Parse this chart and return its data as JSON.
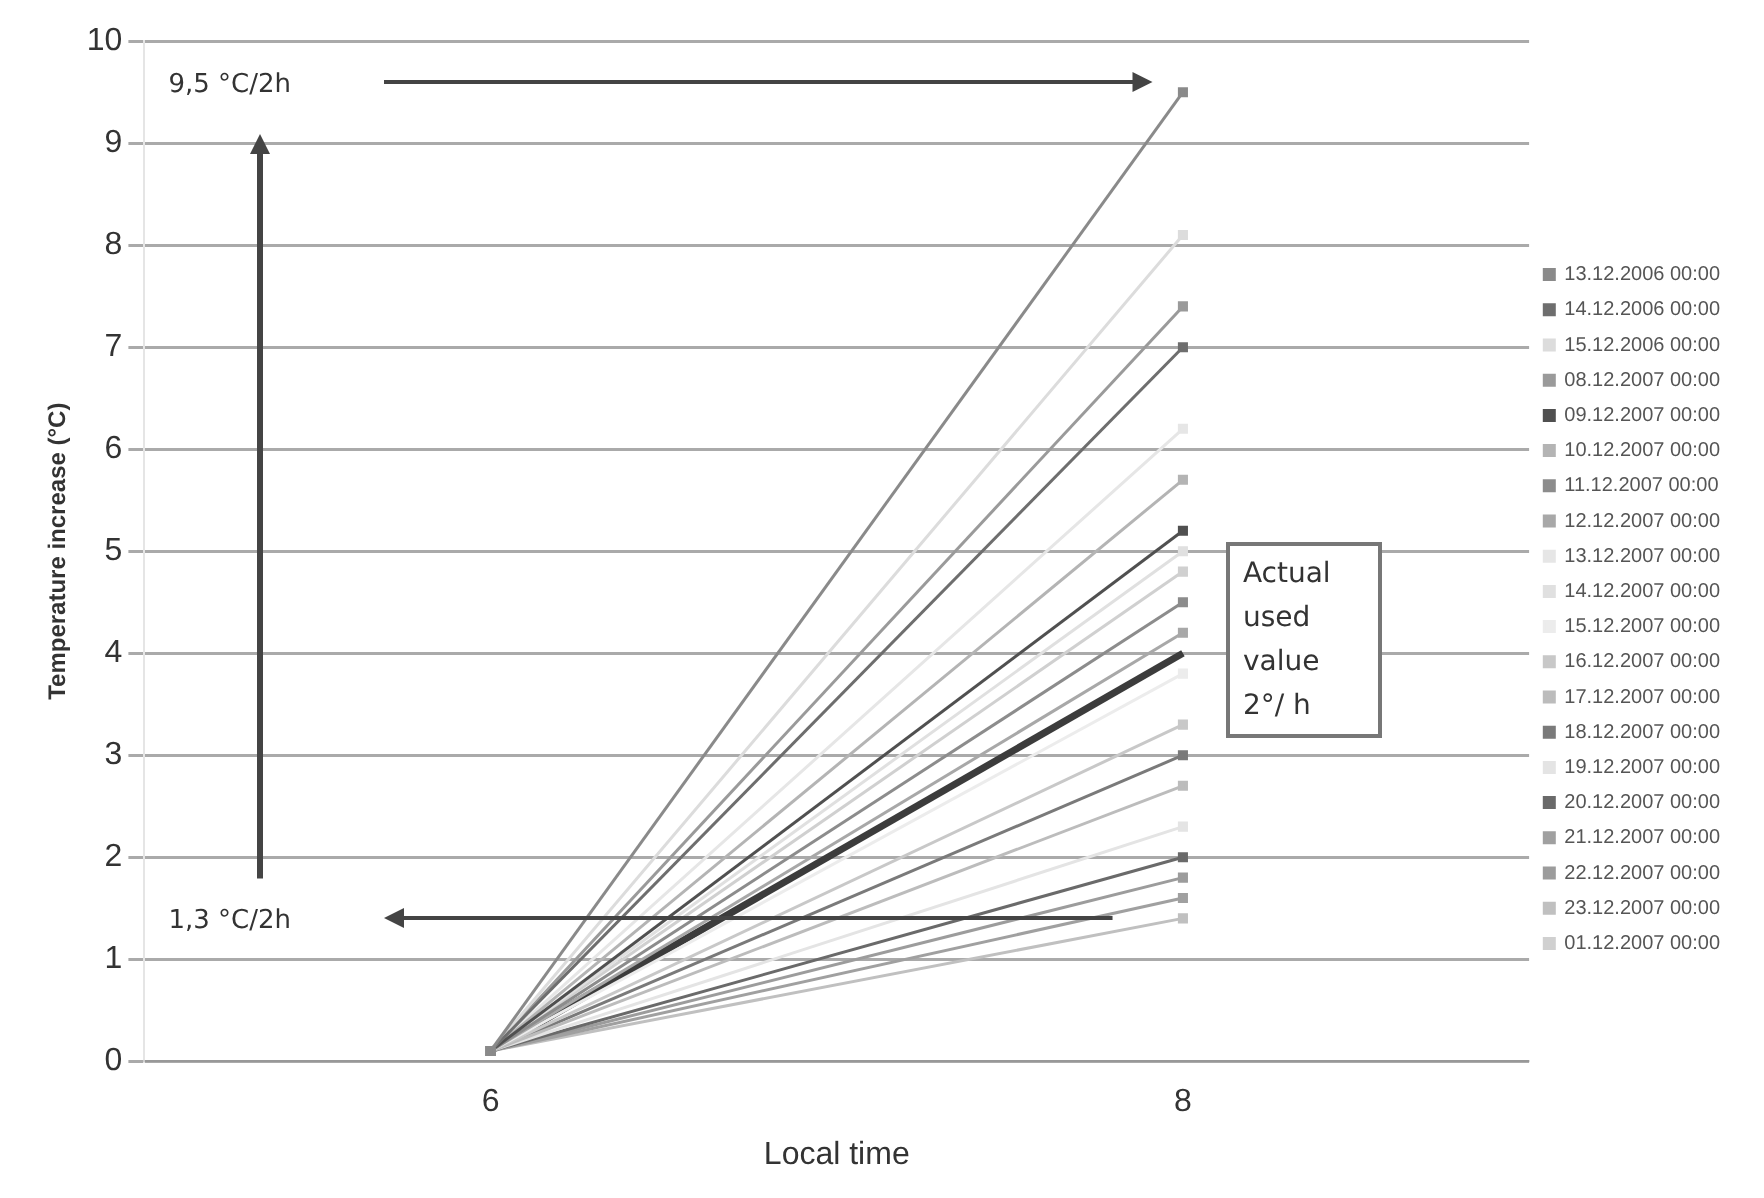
{
  "chart_data": {
    "type": "line",
    "xlabel": "Local time",
    "ylabel": "Temperature increase (°C)",
    "categories": [
      "6",
      "8"
    ],
    "ylim": [
      0,
      10
    ],
    "yticks": [
      0,
      1,
      2,
      3,
      4,
      5,
      6,
      7,
      8,
      9,
      10
    ],
    "grid": "y",
    "legend": "right",
    "marker": "square",
    "line_style": "solid",
    "series": [
      {
        "name": "13.12.2006 00:00",
        "color": "#8a8a8a",
        "values": [
          0.1,
          9.5
        ]
      },
      {
        "name": "14.12.2006 00:00",
        "color": "#6e6e6e",
        "values": [
          0.1,
          7.0
        ]
      },
      {
        "name": "15.12.2006 00:00",
        "color": "#dcdcdc",
        "values": [
          0.1,
          8.1
        ]
      },
      {
        "name": "08.12.2007 00:00",
        "color": "#9a9a9a",
        "values": [
          0.1,
          7.4
        ]
      },
      {
        "name": "09.12.2007 00:00",
        "color": "#505050",
        "values": [
          0.1,
          5.2
        ]
      },
      {
        "name": "10.12.2007 00:00",
        "color": "#b4b4b4",
        "values": [
          0.1,
          5.7
        ]
      },
      {
        "name": "11.12.2007 00:00",
        "color": "#8c8c8c",
        "values": [
          0.1,
          4.5
        ]
      },
      {
        "name": "12.12.2007 00:00",
        "color": "#a8a8a8",
        "values": [
          0.1,
          4.2
        ]
      },
      {
        "name": "13.12.2007 00:00",
        "color": "#e6e6e6",
        "values": [
          0.1,
          6.2
        ]
      },
      {
        "name": "14.12.2007 00:00",
        "color": "#e0e0e0",
        "values": [
          0.1,
          5.0
        ]
      },
      {
        "name": "15.12.2007 00:00",
        "color": "#ececec",
        "values": [
          0.1,
          3.8
        ]
      },
      {
        "name": "16.12.2007 00:00",
        "color": "#c8c8c8",
        "values": [
          0.1,
          3.3
        ]
      },
      {
        "name": "17.12.2007 00:00",
        "color": "#bcbcbc",
        "values": [
          0.1,
          2.7
        ]
      },
      {
        "name": "18.12.2007 00:00",
        "color": "#7a7a7a",
        "values": [
          0.1,
          3.0
        ]
      },
      {
        "name": "19.12.2007 00:00",
        "color": "#e4e4e4",
        "values": [
          0.1,
          2.3
        ]
      },
      {
        "name": "20.12.2007 00:00",
        "color": "#6a6a6a",
        "values": [
          0.1,
          2.0
        ]
      },
      {
        "name": "21.12.2007 00:00",
        "color": "#a0a0a0",
        "values": [
          0.1,
          1.6
        ]
      },
      {
        "name": "22.12.2007 00:00",
        "color": "#9c9c9c",
        "values": [
          0.1,
          1.8
        ]
      },
      {
        "name": "23.12.2007 00:00",
        "color": "#c0c0c0",
        "values": [
          0.1,
          1.4
        ]
      },
      {
        "name": "01.12.2007 00:00",
        "color": "#d0d0d0",
        "values": [
          0.1,
          4.8
        ]
      },
      {
        "color": "#3c3c3c",
        "values": [
          0.1,
          4.0
        ],
        "marker": "none"
      }
    ],
    "annotations": [
      "9,5 °C/2h",
      "1,3 °C/2h",
      "Actual used value 2°/ h"
    ]
  }
}
